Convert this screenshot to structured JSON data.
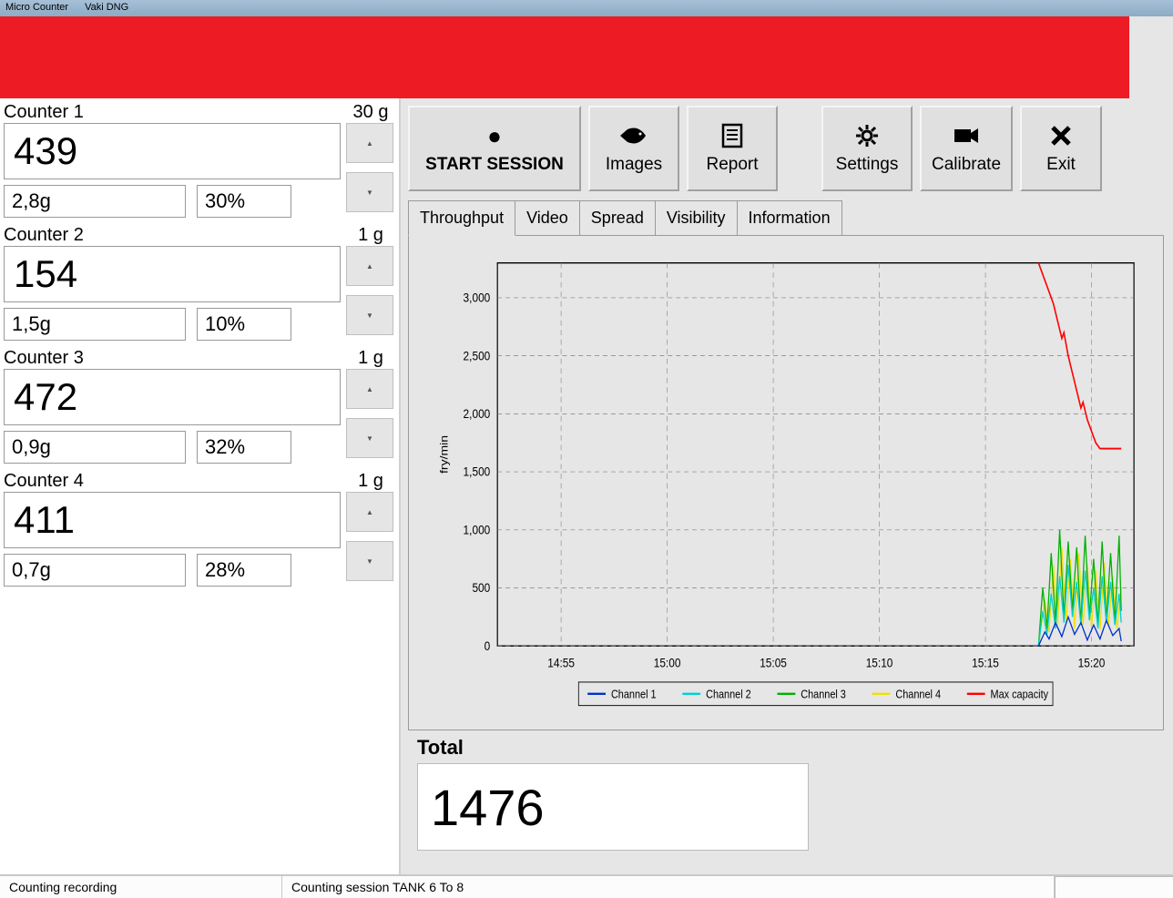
{
  "titlebar": {
    "app": "Micro Counter",
    "sub": "Vaki DNG"
  },
  "banner": {
    "color": "#ed1c24"
  },
  "counters": [
    {
      "title": "Counter 1",
      "count": "439",
      "weight": "2,8g",
      "pct": "30%",
      "stepper_label": "30 g"
    },
    {
      "title": "Counter 2",
      "count": "154",
      "weight": "1,5g",
      "pct": "10%",
      "stepper_label": "1 g"
    },
    {
      "title": "Counter 3",
      "count": "472",
      "weight": "0,9g",
      "pct": "32%",
      "stepper_label": "1 g"
    },
    {
      "title": "Counter 4",
      "count": "411",
      "weight": "0,7g",
      "pct": "28%",
      "stepper_label": "1 g"
    }
  ],
  "toolbar": {
    "start": "START SESSION",
    "images": "Images",
    "report": "Report",
    "settings": "Settings",
    "calibrate": "Calibrate",
    "exit": "Exit"
  },
  "tabs": [
    "Throughput",
    "Video",
    "Spread",
    "Visibility",
    "Information"
  ],
  "chart": {
    "type": "line",
    "ylabel": "fry/min",
    "ylim": [
      0,
      3300
    ],
    "yticks": [
      0,
      500,
      1000,
      1500,
      2000,
      2500,
      3000
    ],
    "xlabels": [
      "14:55",
      "15:00",
      "15:05",
      "15:10",
      "15:15",
      "15:20"
    ],
    "x_range": [
      0,
      30
    ],
    "plot_bg": "#e6e6e6",
    "grid_color": "#808080",
    "legend": [
      {
        "label": "Channel 1",
        "color": "#0033cc"
      },
      {
        "label": "Channel 2",
        "color": "#00d0d0"
      },
      {
        "label": "Channel 3",
        "color": "#00b000"
      },
      {
        "label": "Channel 4",
        "color": "#f0e000"
      },
      {
        "label": "Max capacity",
        "color": "#ff0000"
      }
    ],
    "series": {
      "max_capacity": [
        [
          25.5,
          3300
        ],
        [
          25.6,
          3250
        ],
        [
          25.8,
          3150
        ],
        [
          26.0,
          3050
        ],
        [
          26.2,
          2950
        ],
        [
          26.4,
          2800
        ],
        [
          26.6,
          2650
        ],
        [
          26.7,
          2700
        ],
        [
          26.9,
          2500
        ],
        [
          27.1,
          2350
        ],
        [
          27.3,
          2200
        ],
        [
          27.5,
          2050
        ],
        [
          27.6,
          2100
        ],
        [
          27.8,
          1950
        ],
        [
          28.0,
          1850
        ],
        [
          28.2,
          1750
        ],
        [
          28.4,
          1700
        ],
        [
          28.6,
          1700
        ],
        [
          28.8,
          1700
        ],
        [
          29.0,
          1700
        ],
        [
          29.2,
          1700
        ],
        [
          29.4,
          1700
        ]
      ],
      "ch1": [
        [
          25.5,
          0
        ],
        [
          25.8,
          120
        ],
        [
          26.0,
          60
        ],
        [
          26.3,
          200
        ],
        [
          26.6,
          80
        ],
        [
          26.9,
          250
        ],
        [
          27.2,
          100
        ],
        [
          27.5,
          200
        ],
        [
          27.8,
          50
        ],
        [
          28.1,
          180
        ],
        [
          28.4,
          60
        ],
        [
          28.7,
          220
        ],
        [
          29.0,
          90
        ],
        [
          29.3,
          150
        ],
        [
          29.4,
          40
        ]
      ],
      "ch2": [
        [
          25.5,
          0
        ],
        [
          25.7,
          300
        ],
        [
          25.9,
          100
        ],
        [
          26.1,
          450
        ],
        [
          26.3,
          150
        ],
        [
          26.5,
          600
        ],
        [
          26.7,
          200
        ],
        [
          26.9,
          700
        ],
        [
          27.1,
          250
        ],
        [
          27.3,
          550
        ],
        [
          27.5,
          180
        ],
        [
          27.7,
          650
        ],
        [
          27.9,
          220
        ],
        [
          28.1,
          500
        ],
        [
          28.3,
          150
        ],
        [
          28.5,
          600
        ],
        [
          28.7,
          200
        ],
        [
          28.9,
          550
        ],
        [
          29.1,
          180
        ],
        [
          29.3,
          450
        ],
        [
          29.4,
          200
        ]
      ],
      "ch3": [
        [
          25.5,
          0
        ],
        [
          25.7,
          500
        ],
        [
          25.9,
          150
        ],
        [
          26.1,
          800
        ],
        [
          26.3,
          200
        ],
        [
          26.5,
          1000
        ],
        [
          26.7,
          250
        ],
        [
          26.9,
          900
        ],
        [
          27.1,
          300
        ],
        [
          27.3,
          850
        ],
        [
          27.5,
          200
        ],
        [
          27.7,
          950
        ],
        [
          27.9,
          250
        ],
        [
          28.1,
          750
        ],
        [
          28.3,
          180
        ],
        [
          28.5,
          900
        ],
        [
          28.7,
          220
        ],
        [
          28.9,
          800
        ],
        [
          29.1,
          200
        ],
        [
          29.3,
          950
        ],
        [
          29.4,
          300
        ]
      ],
      "ch4": [
        [
          25.5,
          0
        ],
        [
          25.8,
          400
        ],
        [
          26.0,
          120
        ],
        [
          26.2,
          700
        ],
        [
          26.4,
          180
        ],
        [
          26.6,
          850
        ],
        [
          26.8,
          200
        ],
        [
          27.0,
          750
        ],
        [
          27.2,
          150
        ],
        [
          27.4,
          800
        ],
        [
          27.6,
          180
        ],
        [
          27.8,
          700
        ],
        [
          28.0,
          160
        ],
        [
          28.2,
          650
        ],
        [
          28.4,
          140
        ],
        [
          28.6,
          720
        ],
        [
          28.8,
          170
        ],
        [
          29.0,
          600
        ],
        [
          29.2,
          150
        ],
        [
          29.4,
          500
        ]
      ]
    }
  },
  "total": {
    "label": "Total",
    "value": "1476"
  },
  "status": {
    "left": "Counting recording",
    "mid": "Counting session TANK 6 To 8"
  }
}
